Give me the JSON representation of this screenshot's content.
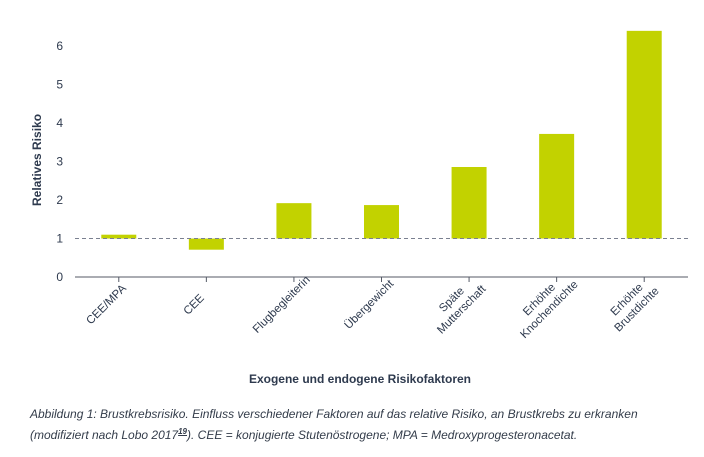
{
  "chart_data": {
    "type": "bar",
    "categories": [
      [
        "CEE/MPA"
      ],
      [
        "CEE"
      ],
      [
        "Flugbegleiterin"
      ],
      [
        "Übergewicht"
      ],
      [
        "Späte",
        "Mutterschaft"
      ],
      [
        "Erhöhte",
        "Knochendichte"
      ],
      [
        "Erhöhte",
        "Brustdichte"
      ]
    ],
    "values": [
      1.1,
      0.71,
      1.92,
      1.87,
      2.86,
      3.72,
      6.4
    ],
    "baseline": 1,
    "xlabel": "Exogene und endogene Risikofaktoren",
    "ylabel": "Relatives Risiko",
    "ylim": [
      0,
      6.5
    ],
    "yticks": [
      0,
      1,
      2,
      3,
      4,
      5,
      6
    ],
    "grid": false,
    "reference_line": 1
  },
  "caption": {
    "part1": "Abbildung 1: Brustkrebsrisiko. Einfluss verschiedener Faktoren auf das relative Risiko, an Brustkrebs zu erkranken (modifiziert nach Lobo 2017",
    "ref": "19",
    "part2": "). CEE = konjugierte Stutenöstrogene; MPA = Medroxyprogesteronacetat."
  },
  "colors": {
    "bar": "#c2d200",
    "axis": "#555a66",
    "text": "#2e3a4e",
    "reference_line": "#7a8090"
  }
}
